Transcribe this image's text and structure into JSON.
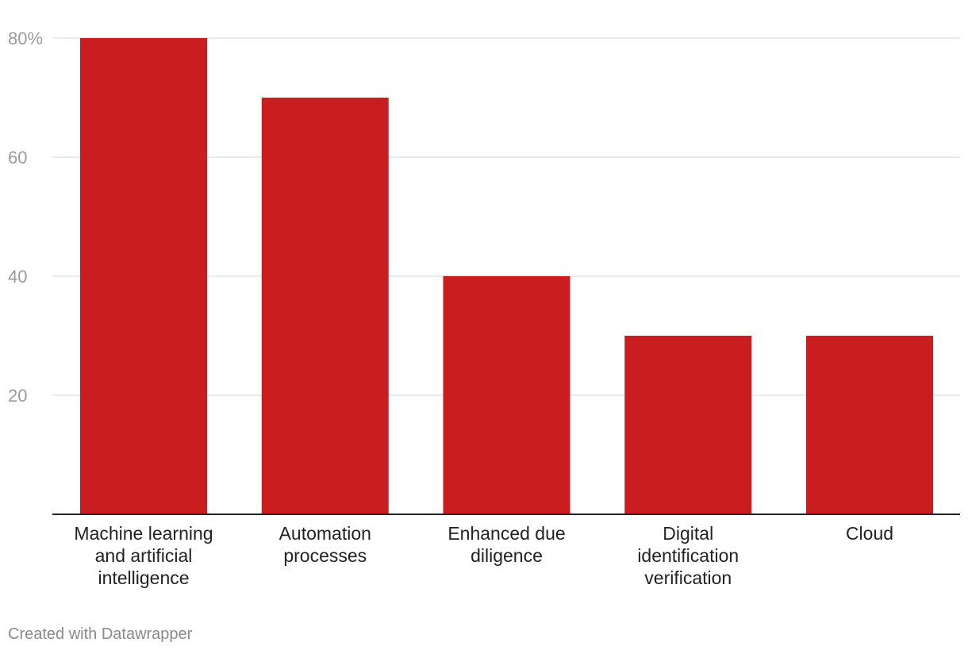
{
  "chart_data": {
    "type": "bar",
    "title": "",
    "xlabel": "",
    "ylabel": "",
    "categories": [
      [
        "Machine learning",
        "and artificial",
        "intelligence"
      ],
      [
        "Automation",
        "processes"
      ],
      [
        "Enhanced due",
        "diligence"
      ],
      [
        "Digital",
        "identification",
        "verification"
      ],
      [
        "Cloud"
      ]
    ],
    "values": [
      80,
      70,
      40,
      30,
      30
    ],
    "ylim": [
      0,
      80
    ],
    "y_ticks": [
      20,
      40,
      60,
      80
    ],
    "y_tick_labels": [
      "20",
      "40",
      "60",
      "80%"
    ],
    "grid": true,
    "bar_color": "#c91d1f"
  },
  "footer": {
    "credit": "Created with Datawrapper"
  }
}
